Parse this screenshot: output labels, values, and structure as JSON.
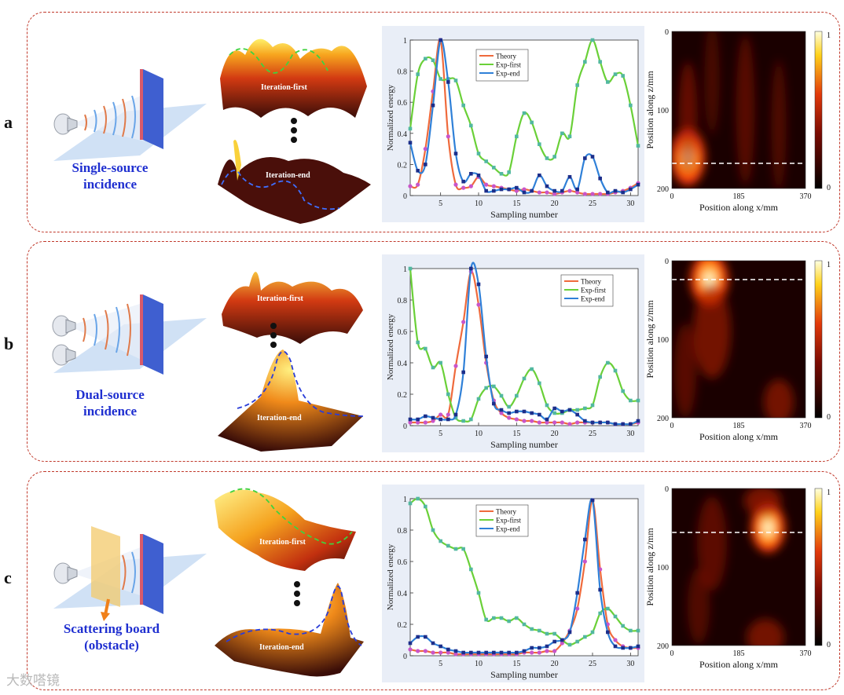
{
  "panels": [
    {
      "id": "a",
      "label": "a",
      "caption_lines": [
        "Single-source",
        "incidence"
      ],
      "iteration_first_label": "Iteration-first",
      "iteration_end_label": "Iteration-end",
      "heatmap": {
        "xlabel": "Position along x/mm",
        "ylabel": "Position along z/mm",
        "xticks": [
          "0",
          "185",
          "370"
        ],
        "yticks": [
          "0",
          "100",
          "200"
        ],
        "cbar_ticks": [
          "1",
          "0"
        ]
      }
    },
    {
      "id": "b",
      "label": "b",
      "caption_lines": [
        "Dual-source",
        "incidence"
      ],
      "iteration_first_label": "Iteration-first",
      "iteration_end_label": "Iteration-end",
      "heatmap": {
        "xlabel": "Position along x/mm",
        "ylabel": "Position along z/mm",
        "xticks": [
          "0",
          "185",
          "370"
        ],
        "yticks": [
          "0",
          "100",
          "200"
        ],
        "cbar_ticks": [
          "1",
          "0"
        ]
      }
    },
    {
      "id": "c",
      "label": "c",
      "caption_lines": [
        "Scattering board",
        "(obstacle)"
      ],
      "iteration_first_label": "Iteration-first",
      "iteration_end_label": "Iteration-end",
      "heatmap": {
        "xlabel": "Position along x/mm",
        "ylabel": "Position along z/mm",
        "xticks": [
          "0",
          "185",
          "370"
        ],
        "yticks": [
          "0",
          "100",
          "200"
        ],
        "cbar_ticks": [
          "1",
          "0"
        ]
      }
    }
  ],
  "watermark": "大数嗒镜",
  "chart_data": [
    {
      "type": "line",
      "panel": "a",
      "xlabel": "Sampling number",
      "ylabel": "Normalized energy",
      "xlim": [
        1,
        31
      ],
      "ylim": [
        0,
        1
      ],
      "xticks": [
        5,
        10,
        15,
        20,
        25,
        30
      ],
      "yticks": [
        0,
        0.2,
        0.4,
        0.6,
        0.8,
        1
      ],
      "legend_position": "top-center",
      "x": [
        1,
        2,
        3,
        4,
        5,
        6,
        7,
        8,
        9,
        10,
        11,
        12,
        13,
        14,
        15,
        16,
        17,
        18,
        19,
        20,
        21,
        22,
        23,
        24,
        25,
        26,
        27,
        28,
        29,
        30,
        31
      ],
      "series": [
        {
          "name": "Theory",
          "color": "#ef6a3c",
          "marker_color": "#c955c9",
          "values": [
            0.06,
            0.07,
            0.3,
            0.67,
            1.0,
            0.38,
            0.07,
            0.05,
            0.06,
            0.12,
            0.07,
            0.06,
            0.05,
            0.04,
            0.03,
            0.04,
            0.03,
            0.02,
            0.02,
            0.01,
            0.02,
            0.03,
            0.02,
            0.01,
            0.01,
            0.01,
            0.01,
            0.02,
            0.03,
            0.05,
            0.08
          ]
        },
        {
          "name": "Exp-first",
          "color": "#6ad038",
          "marker_color": "#52b8a0",
          "values": [
            0.43,
            0.78,
            0.88,
            0.87,
            0.75,
            0.75,
            0.74,
            0.58,
            0.45,
            0.27,
            0.22,
            0.18,
            0.14,
            0.15,
            0.38,
            0.53,
            0.47,
            0.33,
            0.24,
            0.25,
            0.4,
            0.38,
            0.71,
            0.86,
            1.0,
            0.86,
            0.73,
            0.78,
            0.77,
            0.58,
            0.32
          ]
        },
        {
          "name": "Exp-end",
          "color": "#2f80d8",
          "marker_color": "#1c2e8a",
          "values": [
            0.34,
            0.16,
            0.2,
            0.58,
            1.0,
            0.73,
            0.27,
            0.09,
            0.14,
            0.13,
            0.03,
            0.03,
            0.04,
            0.04,
            0.05,
            0.02,
            0.03,
            0.13,
            0.06,
            0.03,
            0.03,
            0.12,
            0.04,
            0.24,
            0.25,
            0.11,
            0.02,
            0.03,
            0.02,
            0.04,
            0.07
          ]
        }
      ]
    },
    {
      "type": "line",
      "panel": "b",
      "xlabel": "Sampling number",
      "ylabel": "Normalized energy",
      "xlim": [
        1,
        31
      ],
      "ylim": [
        0,
        1
      ],
      "xticks": [
        5,
        10,
        15,
        20,
        25,
        30
      ],
      "yticks": [
        0,
        0.2,
        0.4,
        0.6,
        0.8,
        1
      ],
      "legend_position": "top-right",
      "x": [
        1,
        2,
        3,
        4,
        5,
        6,
        7,
        8,
        9,
        10,
        11,
        12,
        13,
        14,
        15,
        16,
        17,
        18,
        19,
        20,
        21,
        22,
        23,
        24,
        25,
        26,
        27,
        28,
        29,
        30,
        31
      ],
      "series": [
        {
          "name": "Theory",
          "color": "#ef6a3c",
          "marker_color": "#c955c9",
          "values": [
            0.02,
            0.02,
            0.02,
            0.03,
            0.07,
            0.07,
            0.38,
            0.66,
            0.98,
            0.77,
            0.4,
            0.16,
            0.08,
            0.05,
            0.04,
            0.03,
            0.03,
            0.02,
            0.02,
            0.02,
            0.02,
            0.01,
            0.02,
            0.02,
            0.02,
            0.02,
            0.02,
            0.01,
            0.01,
            0.01,
            0.02
          ]
        },
        {
          "name": "Exp-first",
          "color": "#6ad038",
          "marker_color": "#52b8a0",
          "values": [
            1.0,
            0.53,
            0.49,
            0.37,
            0.4,
            0.2,
            0.05,
            0.03,
            0.04,
            0.17,
            0.24,
            0.25,
            0.19,
            0.12,
            0.19,
            0.3,
            0.36,
            0.27,
            0.13,
            0.08,
            0.08,
            0.1,
            0.1,
            0.11,
            0.13,
            0.31,
            0.4,
            0.35,
            0.22,
            0.16,
            0.16
          ]
        },
        {
          "name": "Exp-end",
          "color": "#2f80d8",
          "marker_color": "#1c2e8a",
          "values": [
            0.04,
            0.04,
            0.06,
            0.05,
            0.04,
            0.04,
            0.07,
            0.34,
            1.0,
            0.9,
            0.44,
            0.14,
            0.1,
            0.08,
            0.09,
            0.09,
            0.08,
            0.07,
            0.04,
            0.11,
            0.09,
            0.1,
            0.07,
            0.03,
            0.02,
            0.02,
            0.02,
            0.01,
            0.01,
            0.01,
            0.03
          ]
        }
      ]
    },
    {
      "type": "line",
      "panel": "c",
      "xlabel": "Sampling number",
      "ylabel": "Normalized energy",
      "xlim": [
        1,
        31
      ],
      "ylim": [
        0,
        1
      ],
      "xticks": [
        5,
        10,
        15,
        20,
        25,
        30
      ],
      "yticks": [
        0,
        0.2,
        0.4,
        0.6,
        0.8,
        1
      ],
      "legend_position": "top-center",
      "x": [
        1,
        2,
        3,
        4,
        5,
        6,
        7,
        8,
        9,
        10,
        11,
        12,
        13,
        14,
        15,
        16,
        17,
        18,
        19,
        20,
        21,
        22,
        23,
        24,
        25,
        26,
        27,
        28,
        29,
        30,
        31
      ],
      "series": [
        {
          "name": "Theory",
          "color": "#ef6a3c",
          "marker_color": "#c955c9",
          "values": [
            0.04,
            0.03,
            0.03,
            0.02,
            0.02,
            0.02,
            0.01,
            0.01,
            0.01,
            0.01,
            0.01,
            0.01,
            0.01,
            0.01,
            0.01,
            0.02,
            0.02,
            0.02,
            0.03,
            0.03,
            0.08,
            0.16,
            0.3,
            0.6,
            0.99,
            0.55,
            0.2,
            0.1,
            0.06,
            0.05,
            0.05
          ]
        },
        {
          "name": "Exp-first",
          "color": "#6ad038",
          "marker_color": "#52b8a0",
          "values": [
            0.97,
            1.0,
            0.95,
            0.8,
            0.73,
            0.7,
            0.68,
            0.68,
            0.55,
            0.4,
            0.23,
            0.24,
            0.24,
            0.22,
            0.24,
            0.2,
            0.17,
            0.16,
            0.14,
            0.14,
            0.1,
            0.07,
            0.09,
            0.12,
            0.15,
            0.27,
            0.3,
            0.25,
            0.19,
            0.16,
            0.16
          ]
        },
        {
          "name": "Exp-end",
          "color": "#2f80d8",
          "marker_color": "#1c2e8a",
          "values": [
            0.08,
            0.12,
            0.12,
            0.08,
            0.06,
            0.04,
            0.03,
            0.02,
            0.02,
            0.02,
            0.02,
            0.02,
            0.02,
            0.02,
            0.02,
            0.03,
            0.05,
            0.05,
            0.06,
            0.09,
            0.1,
            0.15,
            0.4,
            0.74,
            0.99,
            0.42,
            0.15,
            0.06,
            0.05,
            0.05,
            0.06
          ]
        }
      ]
    }
  ]
}
